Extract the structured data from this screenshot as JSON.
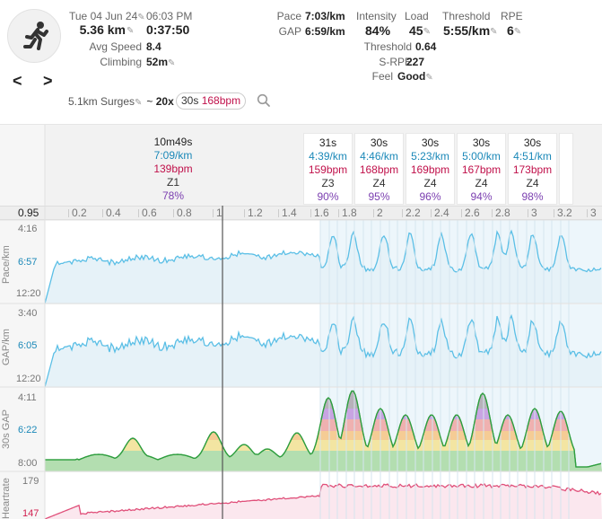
{
  "activity": {
    "date": "Tue 04 Jun 24",
    "time": "06:03 PM",
    "distance": "5.36 km",
    "duration": "0:37:50",
    "avg_speed_label": "Avg Speed",
    "avg_speed": "8.4",
    "climbing_label": "Climbing",
    "climbing": "52m"
  },
  "stats": {
    "pace_label": "Pace",
    "pace": "7:03/km",
    "gap_label": "GAP",
    "gap": "6:59/km",
    "intensity_label": "Intensity",
    "intensity": "84%",
    "load_label": "Load",
    "load": "45",
    "threshold_label": "Threshold",
    "threshold": "5:55/km",
    "rpe_label": "RPE",
    "rpe": "6",
    "threshold2_label": "Threshold",
    "threshold2": "0.64",
    "srpe_label": "S-RPE",
    "srpe": "227",
    "feel_label": "Feel",
    "feel": "Good"
  },
  "nav": {
    "prev": "<",
    "next": ">"
  },
  "interval_line": {
    "name": "5.1km Surges",
    "tilde": "~",
    "count": "20x",
    "chip_dur": "30s",
    "chip_hr": "168bpm"
  },
  "segments": [
    {
      "time": "10m49s",
      "pace": "7:09/km",
      "hr": "139bpm",
      "zone": "Z1",
      "pct": "78%"
    },
    {
      "time": "31s",
      "pace": "4:39/km",
      "hr": "159bpm",
      "zone": "Z3",
      "pct": "90%"
    },
    {
      "time": "30s",
      "pace": "4:46/km",
      "hr": "168bpm",
      "zone": "Z4",
      "pct": "95%"
    },
    {
      "time": "30s",
      "pace": "5:23/km",
      "hr": "169bpm",
      "zone": "Z4",
      "pct": "96%"
    },
    {
      "time": "30s",
      "pace": "5:00/km",
      "hr": "167bpm",
      "zone": "Z4",
      "pct": "94%"
    },
    {
      "time": "30s",
      "pace": "4:51/km",
      "hr": "173bpm",
      "zone": "Z4",
      "pct": "98%"
    }
  ],
  "xaxis": {
    "first": "0.95",
    "ticks": [
      "0.2",
      "0.4",
      "0.6",
      "0.8",
      "1",
      "1.2",
      "1.4",
      "1.6",
      "1.8",
      "2",
      "2.2",
      "2.4",
      "2.6",
      "2.8",
      "3",
      "3.2",
      "3"
    ]
  },
  "charts": {
    "pace": {
      "title": "Pace/km",
      "top": "4:16",
      "mid": "6:57",
      "bottom": "12:20"
    },
    "gap": {
      "title": "GAP/km",
      "top": "3:40",
      "mid": "6:05",
      "bottom": "12:20"
    },
    "gap30": {
      "title": "30s GAP",
      "top": "4:11",
      "mid": "6:22",
      "bottom": "8:00"
    },
    "hr": {
      "title": "Heartrate",
      "top": "179",
      "mid": "147"
    }
  },
  "colors": {
    "pace_line": "#5bbfe6",
    "pace_fill": "#e6f2f8",
    "hr_line": "#e0507a",
    "hr_fill": "#fbe7ee",
    "accent_text": "#1a88b8",
    "hr_text": "#c0104a",
    "pct_text": "#7b3fb0"
  }
}
